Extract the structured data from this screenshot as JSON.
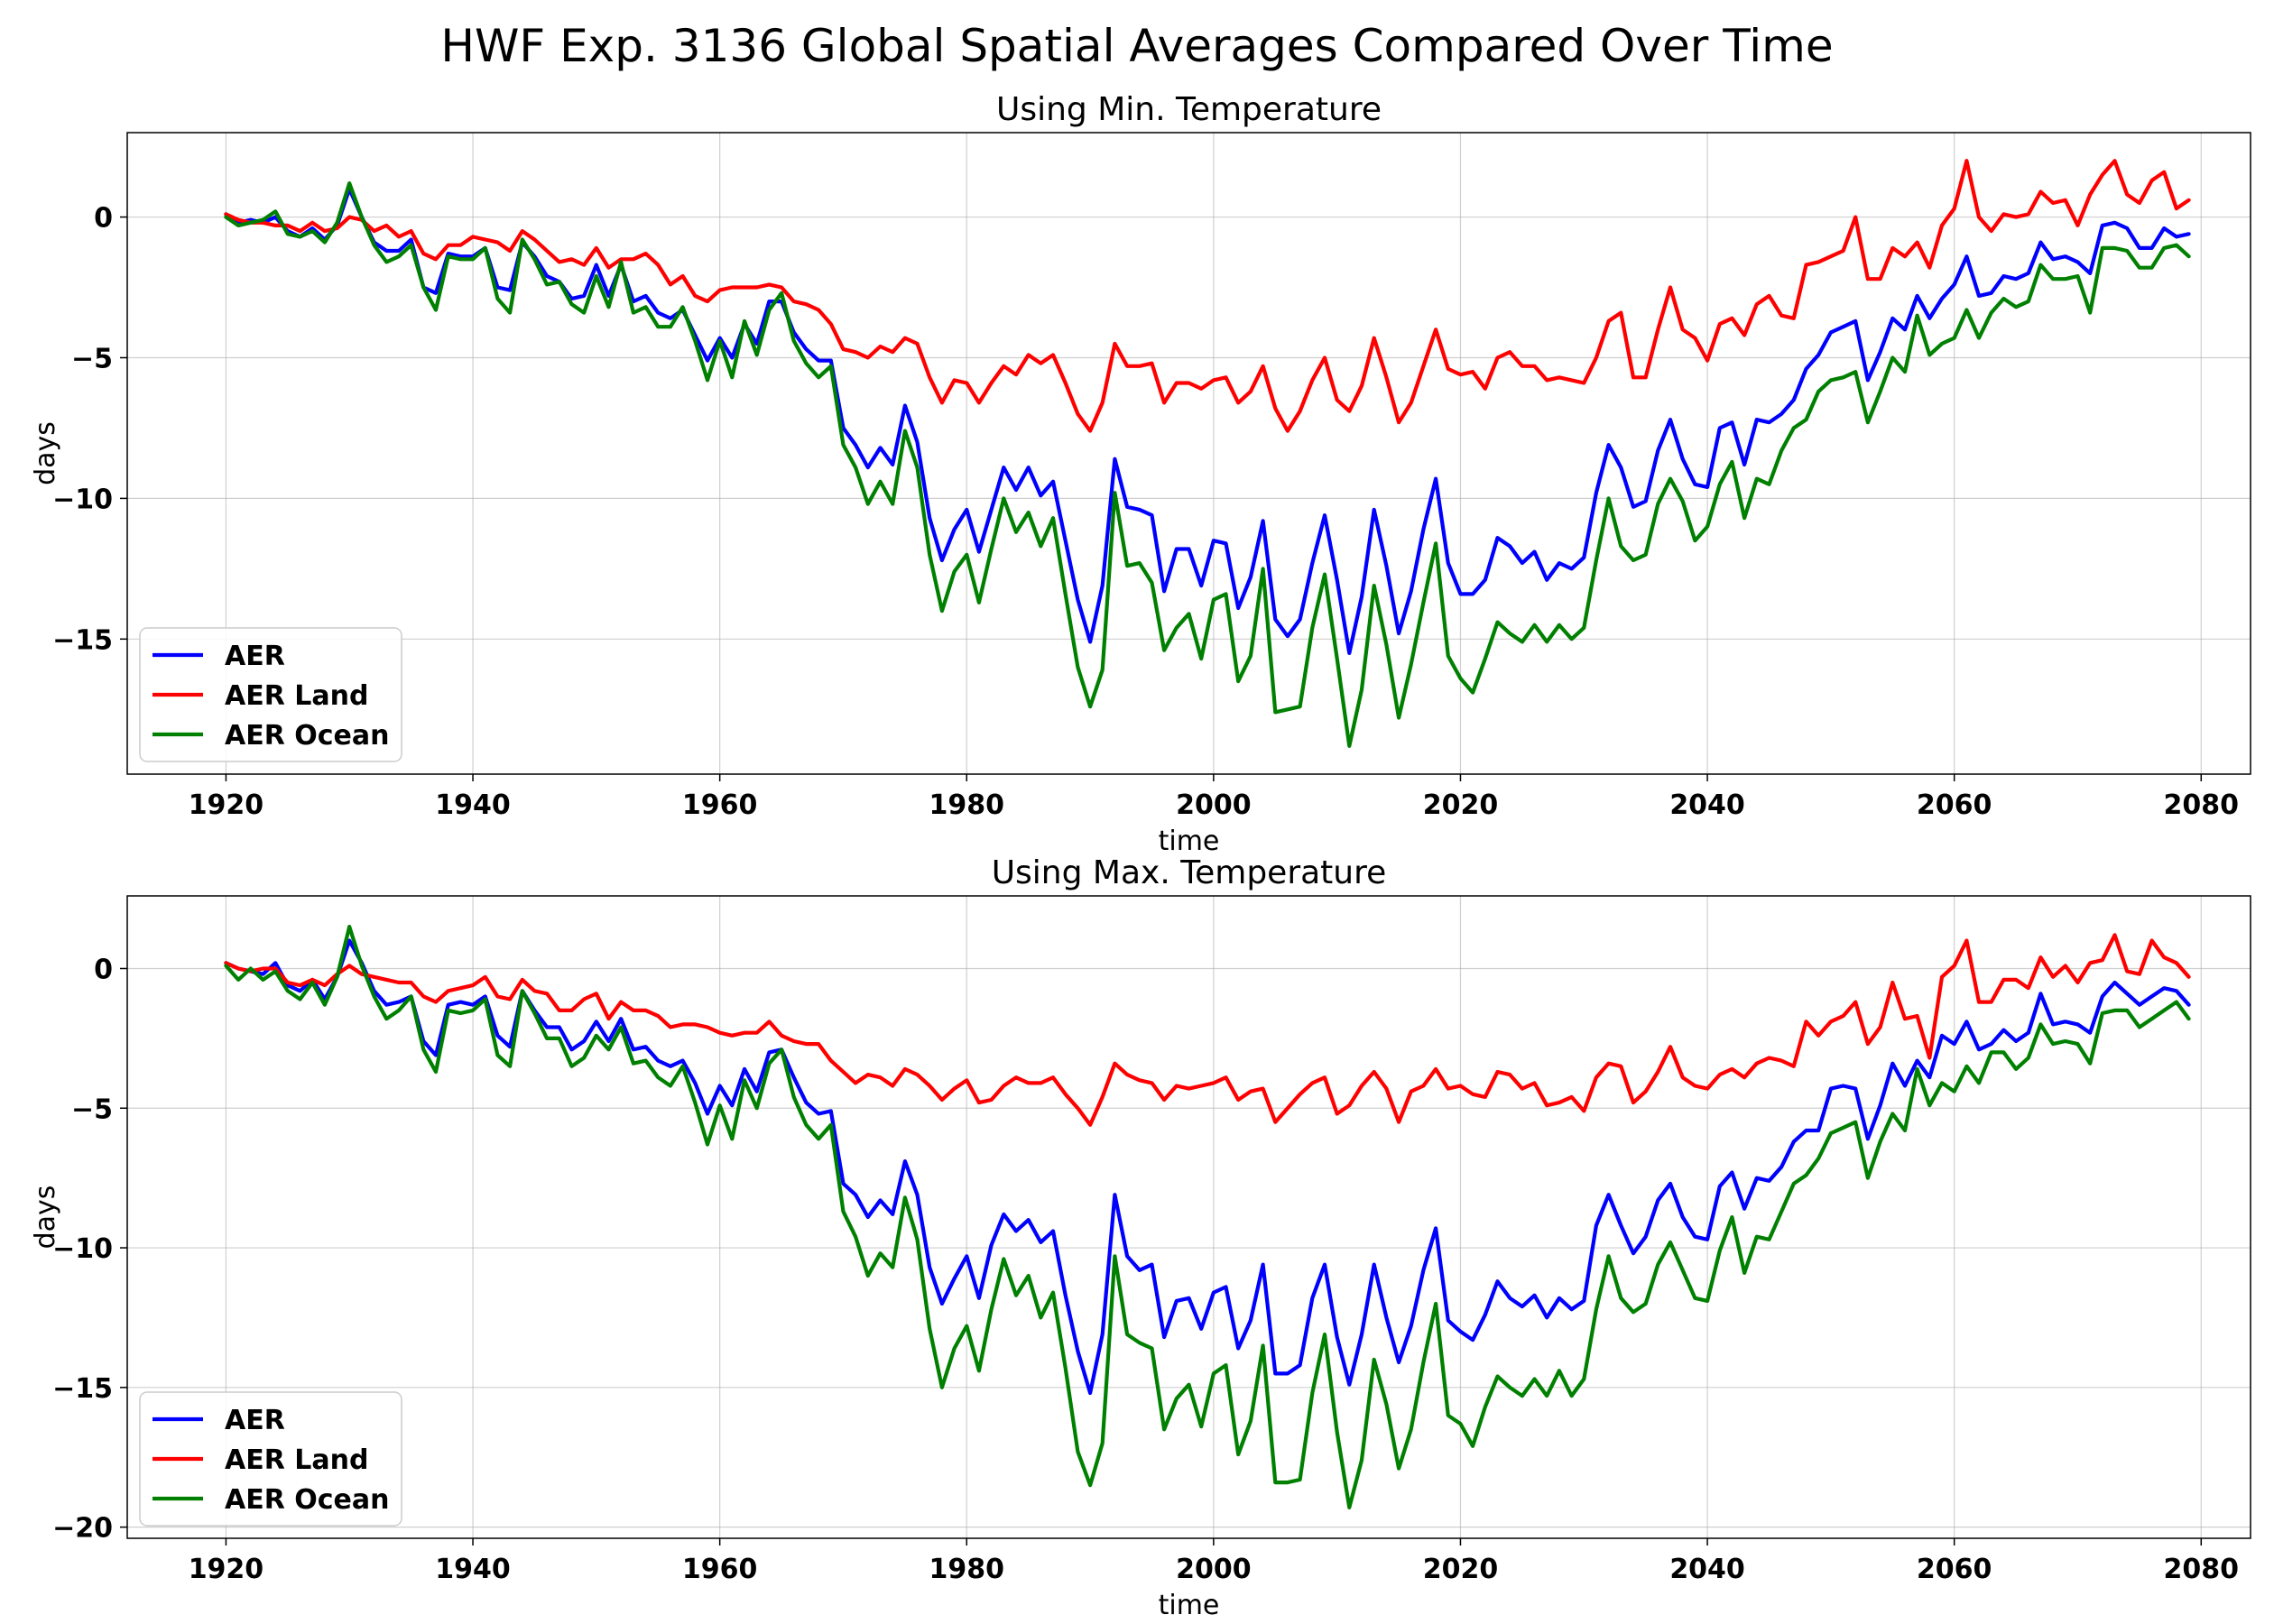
{
  "figure": {
    "title": "HWF Exp. 3136 Global Spatial Averages Compared Over Time"
  },
  "chart_data": [
    {
      "type": "line",
      "title": "Using Min. Temperature",
      "xlabel": "time",
      "ylabel": "days",
      "xlim": [
        1912,
        2084
      ],
      "ylim": [
        -19.8,
        3.0
      ],
      "xticks": [
        1920,
        1940,
        1960,
        1980,
        2000,
        2020,
        2040,
        2060,
        2080
      ],
      "xtick_labels": [
        "1920",
        "1940",
        "1960",
        "1980",
        "2000",
        "2020",
        "2040",
        "2060",
        "2080"
      ],
      "yticks": [
        0,
        -5,
        -10,
        -15
      ],
      "ytick_labels": [
        "0",
        "−5",
        "−10",
        "−15"
      ],
      "grid": true,
      "legend_position": "lower-left",
      "x_start": 1920,
      "series": [
        {
          "name": "AER",
          "color": "#0000ff",
          "values": [
            0.1,
            -0.2,
            -0.1,
            -0.2,
            0.0,
            -0.5,
            -0.7,
            -0.4,
            -0.8,
            -0.3,
            1.0,
            0.0,
            -0.9,
            -1.2,
            -1.2,
            -0.8,
            -2.5,
            -2.7,
            -1.3,
            -1.4,
            -1.4,
            -1.1,
            -2.5,
            -2.6,
            -0.9,
            -1.4,
            -2.1,
            -2.3,
            -2.9,
            -2.8,
            -1.7,
            -2.8,
            -1.7,
            -3.0,
            -2.8,
            -3.4,
            -3.6,
            -3.3,
            -4.2,
            -5.1,
            -4.3,
            -5.0,
            -3.8,
            -4.5,
            -3.0,
            -3.0,
            -4.1,
            -4.7,
            -5.1,
            -5.1,
            -7.5,
            -8.1,
            -8.9,
            -8.2,
            -8.8,
            -6.7,
            -8.0,
            -10.7,
            -12.2,
            -11.1,
            -10.4,
            -11.9,
            -10.4,
            -8.9,
            -9.7,
            -8.9,
            -9.9,
            -9.4,
            -11.5,
            -13.6,
            -15.1,
            -13.1,
            -8.6,
            -10.3,
            -10.4,
            -10.6,
            -13.3,
            -11.8,
            -11.8,
            -13.1,
            -11.5,
            -11.6,
            -13.9,
            -12.8,
            -10.8,
            -14.3,
            -14.9,
            -14.3,
            -12.3,
            -10.6,
            -12.9,
            -15.5,
            -13.5,
            -10.4,
            -12.4,
            -14.8,
            -13.3,
            -11.1,
            -9.3,
            -12.3,
            -13.4,
            -13.4,
            -12.9,
            -11.4,
            -11.7,
            -12.3,
            -11.9,
            -12.9,
            -12.3,
            -12.5,
            -12.1,
            -9.8,
            -8.1,
            -8.9,
            -10.3,
            -10.1,
            -8.3,
            -7.2,
            -8.6,
            -9.5,
            -9.6,
            -7.5,
            -7.3,
            -8.8,
            -7.2,
            -7.3,
            -7.0,
            -6.5,
            -5.4,
            -4.9,
            -4.1,
            -3.9,
            -3.7,
            -5.8,
            -4.8,
            -3.6,
            -4.0,
            -2.8,
            -3.6,
            -2.9,
            -2.4,
            -1.4,
            -2.8,
            -2.7,
            -2.1,
            -2.2,
            -2.0,
            -0.9,
            -1.5,
            -1.4,
            -1.6,
            -2.0,
            -0.3,
            -0.2,
            -0.4,
            -1.1,
            -1.1,
            -0.4,
            -0.7,
            -0.6
          ]
        },
        {
          "name": "AER Land",
          "color": "#ff0000",
          "values": [
            0.1,
            -0.1,
            -0.2,
            -0.2,
            -0.3,
            -0.3,
            -0.5,
            -0.2,
            -0.5,
            -0.4,
            0.0,
            -0.1,
            -0.5,
            -0.3,
            -0.7,
            -0.5,
            -1.3,
            -1.5,
            -1.0,
            -1.0,
            -0.7,
            -0.8,
            -0.9,
            -1.2,
            -0.5,
            -0.8,
            -1.2,
            -1.6,
            -1.5,
            -1.7,
            -1.1,
            -1.8,
            -1.5,
            -1.5,
            -1.3,
            -1.7,
            -2.4,
            -2.1,
            -2.8,
            -3.0,
            -2.6,
            -2.5,
            -2.5,
            -2.5,
            -2.4,
            -2.5,
            -3.0,
            -3.1,
            -3.3,
            -3.8,
            -4.7,
            -4.8,
            -5.0,
            -4.6,
            -4.8,
            -4.3,
            -4.5,
            -5.7,
            -6.6,
            -5.8,
            -5.9,
            -6.6,
            -5.9,
            -5.3,
            -5.6,
            -4.9,
            -5.2,
            -4.9,
            -5.9,
            -7.0,
            -7.6,
            -6.6,
            -4.5,
            -5.3,
            -5.3,
            -5.2,
            -6.6,
            -5.9,
            -5.9,
            -6.1,
            -5.8,
            -5.7,
            -6.6,
            -6.2,
            -5.3,
            -6.8,
            -7.6,
            -6.9,
            -5.8,
            -5.0,
            -6.5,
            -6.9,
            -6.0,
            -4.3,
            -5.7,
            -7.3,
            -6.6,
            -5.3,
            -4.0,
            -5.4,
            -5.6,
            -5.5,
            -6.1,
            -5.0,
            -4.8,
            -5.3,
            -5.3,
            -5.8,
            -5.7,
            -5.8,
            -5.9,
            -5.0,
            -3.7,
            -3.4,
            -5.7,
            -5.7,
            -4.0,
            -2.5,
            -4.0,
            -4.3,
            -5.1,
            -3.8,
            -3.6,
            -4.2,
            -3.1,
            -2.8,
            -3.5,
            -3.6,
            -1.7,
            -1.6,
            -1.4,
            -1.2,
            0.0,
            -2.2,
            -2.2,
            -1.1,
            -1.4,
            -0.9,
            -1.8,
            -0.3,
            0.3,
            2.0,
            0.0,
            -0.5,
            0.1,
            0.0,
            0.1,
            0.9,
            0.5,
            0.6,
            -0.3,
            0.8,
            1.5,
            2.0,
            0.8,
            0.5,
            1.3,
            1.6,
            0.3,
            0.6
          ]
        },
        {
          "name": "AER Ocean",
          "color": "#008000",
          "values": [
            0.0,
            -0.3,
            -0.2,
            -0.1,
            0.2,
            -0.6,
            -0.7,
            -0.5,
            -0.9,
            -0.2,
            1.2,
            0.0,
            -1.0,
            -1.6,
            -1.4,
            -1.0,
            -2.5,
            -3.3,
            -1.4,
            -1.5,
            -1.5,
            -1.1,
            -2.9,
            -3.4,
            -0.8,
            -1.5,
            -2.4,
            -2.3,
            -3.1,
            -3.4,
            -2.1,
            -3.2,
            -1.6,
            -3.4,
            -3.2,
            -3.9,
            -3.9,
            -3.2,
            -4.4,
            -5.8,
            -4.4,
            -5.7,
            -3.7,
            -4.9,
            -3.3,
            -2.7,
            -4.4,
            -5.2,
            -5.7,
            -5.3,
            -8.1,
            -8.9,
            -10.2,
            -9.4,
            -10.2,
            -7.6,
            -8.9,
            -12.0,
            -14.0,
            -12.6,
            -12.0,
            -13.7,
            -11.8,
            -10.0,
            -11.2,
            -10.5,
            -11.7,
            -10.7,
            -13.4,
            -16.0,
            -17.4,
            -16.1,
            -9.8,
            -12.4,
            -12.3,
            -13.0,
            -15.4,
            -14.6,
            -14.1,
            -15.7,
            -13.6,
            -13.4,
            -16.5,
            -15.6,
            -12.5,
            -17.6,
            -17.5,
            -17.4,
            -14.6,
            -12.7,
            -15.7,
            -18.8,
            -16.8,
            -13.1,
            -15.2,
            -17.8,
            -15.9,
            -13.7,
            -11.6,
            -15.6,
            -16.4,
            -16.9,
            -15.7,
            -14.4,
            -14.8,
            -15.1,
            -14.5,
            -15.1,
            -14.5,
            -15.0,
            -14.6,
            -12.2,
            -10.0,
            -11.7,
            -12.2,
            -12.0,
            -10.2,
            -9.3,
            -10.1,
            -11.5,
            -11.0,
            -9.5,
            -8.7,
            -10.7,
            -9.3,
            -9.5,
            -8.3,
            -7.5,
            -7.2,
            -6.2,
            -5.8,
            -5.7,
            -5.5,
            -7.3,
            -6.2,
            -5.0,
            -5.5,
            -3.5,
            -4.9,
            -4.5,
            -4.3,
            -3.3,
            -4.3,
            -3.4,
            -2.9,
            -3.2,
            -3.0,
            -1.7,
            -2.2,
            -2.2,
            -2.1,
            -3.4,
            -1.1,
            -1.1,
            -1.2,
            -1.8,
            -1.8,
            -1.1,
            -1.0,
            -1.4
          ]
        }
      ]
    },
    {
      "type": "line",
      "title": "Using Max. Temperature",
      "xlabel": "time",
      "ylabel": "days",
      "xlim": [
        1912,
        2084
      ],
      "ylim": [
        -20.4,
        2.6
      ],
      "xticks": [
        1920,
        1940,
        1960,
        1980,
        2000,
        2020,
        2040,
        2060,
        2080
      ],
      "xtick_labels": [
        "1920",
        "1940",
        "1960",
        "1980",
        "2000",
        "2020",
        "2040",
        "2060",
        "2080"
      ],
      "yticks": [
        0,
        -5,
        -10,
        -15,
        -20
      ],
      "ytick_labels": [
        "0",
        "−5",
        "−10",
        "−15",
        "−20"
      ],
      "grid": true,
      "legend_position": "lower-left",
      "x_start": 1920,
      "series": [
        {
          "name": "AER",
          "color": "#0000ff",
          "values": [
            0.2,
            0.0,
            -0.1,
            -0.2,
            0.2,
            -0.6,
            -0.8,
            -0.4,
            -1.1,
            -0.3,
            1.0,
            0.2,
            -0.8,
            -1.3,
            -1.2,
            -1.0,
            -2.6,
            -3.1,
            -1.3,
            -1.2,
            -1.3,
            -1.0,
            -2.4,
            -2.8,
            -0.8,
            -1.5,
            -2.1,
            -2.1,
            -2.9,
            -2.6,
            -1.9,
            -2.6,
            -1.8,
            -2.9,
            -2.8,
            -3.3,
            -3.5,
            -3.3,
            -4.1,
            -5.2,
            -4.2,
            -4.9,
            -3.6,
            -4.4,
            -3.0,
            -2.9,
            -3.9,
            -4.8,
            -5.2,
            -5.1,
            -7.7,
            -8.1,
            -8.9,
            -8.3,
            -8.8,
            -6.9,
            -8.1,
            -10.7,
            -12.0,
            -11.1,
            -10.3,
            -11.8,
            -9.9,
            -8.8,
            -9.4,
            -9.0,
            -9.8,
            -9.4,
            -11.7,
            -13.7,
            -15.2,
            -13.1,
            -8.1,
            -10.3,
            -10.8,
            -10.6,
            -13.2,
            -11.9,
            -11.8,
            -12.9,
            -11.6,
            -11.4,
            -13.6,
            -12.6,
            -10.6,
            -14.5,
            -14.5,
            -14.2,
            -11.8,
            -10.6,
            -13.2,
            -14.9,
            -13.1,
            -10.6,
            -12.5,
            -14.1,
            -12.8,
            -10.8,
            -9.3,
            -12.6,
            -13.0,
            -13.3,
            -12.4,
            -11.2,
            -11.8,
            -12.1,
            -11.7,
            -12.5,
            -11.8,
            -12.2,
            -11.9,
            -9.2,
            -8.1,
            -9.2,
            -10.2,
            -9.6,
            -8.3,
            -7.7,
            -8.9,
            -9.6,
            -9.7,
            -7.8,
            -7.3,
            -8.6,
            -7.5,
            -7.6,
            -7.1,
            -6.2,
            -5.8,
            -5.8,
            -4.3,
            -4.2,
            -4.3,
            -6.1,
            -4.9,
            -3.4,
            -4.2,
            -3.3,
            -3.9,
            -2.4,
            -2.7,
            -1.9,
            -2.9,
            -2.7,
            -2.2,
            -2.6,
            -2.3,
            -0.9,
            -2.0,
            -1.9,
            -2.0,
            -2.3,
            -1.0,
            -0.5,
            -0.9,
            -1.3,
            -1.0,
            -0.7,
            -0.8,
            -1.3
          ]
        },
        {
          "name": "AER Land",
          "color": "#ff0000",
          "values": [
            0.2,
            0.0,
            -0.1,
            0.0,
            0.0,
            -0.5,
            -0.6,
            -0.4,
            -0.6,
            -0.2,
            0.1,
            -0.2,
            -0.3,
            -0.4,
            -0.5,
            -0.5,
            -1.0,
            -1.2,
            -0.8,
            -0.7,
            -0.6,
            -0.3,
            -1.0,
            -1.1,
            -0.4,
            -0.8,
            -0.9,
            -1.5,
            -1.5,
            -1.1,
            -0.9,
            -1.8,
            -1.2,
            -1.5,
            -1.5,
            -1.7,
            -2.1,
            -2.0,
            -2.0,
            -2.1,
            -2.3,
            -2.4,
            -2.3,
            -2.3,
            -1.9,
            -2.4,
            -2.6,
            -2.7,
            -2.7,
            -3.3,
            -3.7,
            -4.1,
            -3.8,
            -3.9,
            -4.2,
            -3.6,
            -3.8,
            -4.2,
            -4.7,
            -4.3,
            -4.0,
            -4.8,
            -4.7,
            -4.2,
            -3.9,
            -4.1,
            -4.1,
            -3.9,
            -4.5,
            -5.0,
            -5.6,
            -4.6,
            -3.4,
            -3.8,
            -4.0,
            -4.1,
            -4.7,
            -4.2,
            -4.3,
            -4.2,
            -4.1,
            -3.9,
            -4.7,
            -4.4,
            -4.3,
            -5.5,
            -5.0,
            -4.5,
            -4.1,
            -3.9,
            -5.2,
            -4.9,
            -4.2,
            -3.7,
            -4.3,
            -5.5,
            -4.4,
            -4.2,
            -3.6,
            -4.3,
            -4.2,
            -4.5,
            -4.6,
            -3.7,
            -3.8,
            -4.3,
            -4.1,
            -4.9,
            -4.8,
            -4.6,
            -5.1,
            -3.9,
            -3.4,
            -3.5,
            -4.8,
            -4.4,
            -3.7,
            -2.8,
            -3.9,
            -4.2,
            -4.3,
            -3.8,
            -3.6,
            -3.9,
            -3.4,
            -3.2,
            -3.3,
            -3.5,
            -1.9,
            -2.4,
            -1.9,
            -1.7,
            -1.2,
            -2.7,
            -2.1,
            -0.5,
            -1.8,
            -1.7,
            -3.2,
            -0.3,
            0.1,
            1.0,
            -1.2,
            -1.2,
            -0.4,
            -0.4,
            -0.7,
            0.4,
            -0.3,
            0.1,
            -0.5,
            0.2,
            0.3,
            1.2,
            -0.1,
            -0.2,
            1.0,
            0.4,
            0.2,
            -0.3
          ]
        },
        {
          "name": "AER Ocean",
          "color": "#008000",
          "values": [
            0.1,
            -0.4,
            0.0,
            -0.4,
            -0.1,
            -0.8,
            -1.1,
            -0.5,
            -1.3,
            -0.3,
            1.5,
            0.1,
            -1.0,
            -1.8,
            -1.5,
            -1.0,
            -2.9,
            -3.7,
            -1.5,
            -1.6,
            -1.5,
            -1.1,
            -3.1,
            -3.5,
            -0.8,
            -1.6,
            -2.5,
            -2.5,
            -3.5,
            -3.2,
            -2.4,
            -2.9,
            -2.1,
            -3.4,
            -3.3,
            -3.9,
            -4.2,
            -3.5,
            -4.8,
            -6.3,
            -4.9,
            -6.1,
            -4.0,
            -5.0,
            -3.4,
            -2.9,
            -4.6,
            -5.6,
            -6.1,
            -5.6,
            -8.7,
            -9.6,
            -11.0,
            -10.2,
            -10.7,
            -8.2,
            -9.7,
            -12.9,
            -15.0,
            -13.6,
            -12.8,
            -14.4,
            -12.2,
            -10.4,
            -11.7,
            -11.0,
            -12.5,
            -11.6,
            -14.3,
            -17.3,
            -18.5,
            -17.0,
            -10.3,
            -13.1,
            -13.4,
            -13.6,
            -16.5,
            -15.4,
            -14.9,
            -16.4,
            -14.5,
            -14.2,
            -17.4,
            -16.2,
            -13.5,
            -18.4,
            -18.4,
            -18.3,
            -15.2,
            -13.1,
            -16.6,
            -19.3,
            -17.6,
            -14.0,
            -15.6,
            -17.9,
            -16.5,
            -14.1,
            -12.0,
            -16.0,
            -16.3,
            -17.1,
            -15.7,
            -14.6,
            -15.0,
            -15.3,
            -14.7,
            -15.3,
            -14.4,
            -15.3,
            -14.7,
            -12.2,
            -10.3,
            -11.8,
            -12.3,
            -12.0,
            -10.6,
            -9.8,
            -10.8,
            -11.8,
            -11.9,
            -10.1,
            -8.9,
            -10.9,
            -9.6,
            -9.7,
            -8.7,
            -7.7,
            -7.4,
            -6.8,
            -5.9,
            -5.7,
            -5.5,
            -7.5,
            -6.2,
            -5.2,
            -5.8,
            -3.6,
            -4.9,
            -4.1,
            -4.4,
            -3.5,
            -4.1,
            -3.0,
            -3.0,
            -3.6,
            -3.2,
            -2.0,
            -2.7,
            -2.6,
            -2.7,
            -3.4,
            -1.6,
            -1.5,
            -1.5,
            -2.1,
            -1.8,
            -1.5,
            -1.2,
            -1.8
          ]
        }
      ]
    }
  ]
}
